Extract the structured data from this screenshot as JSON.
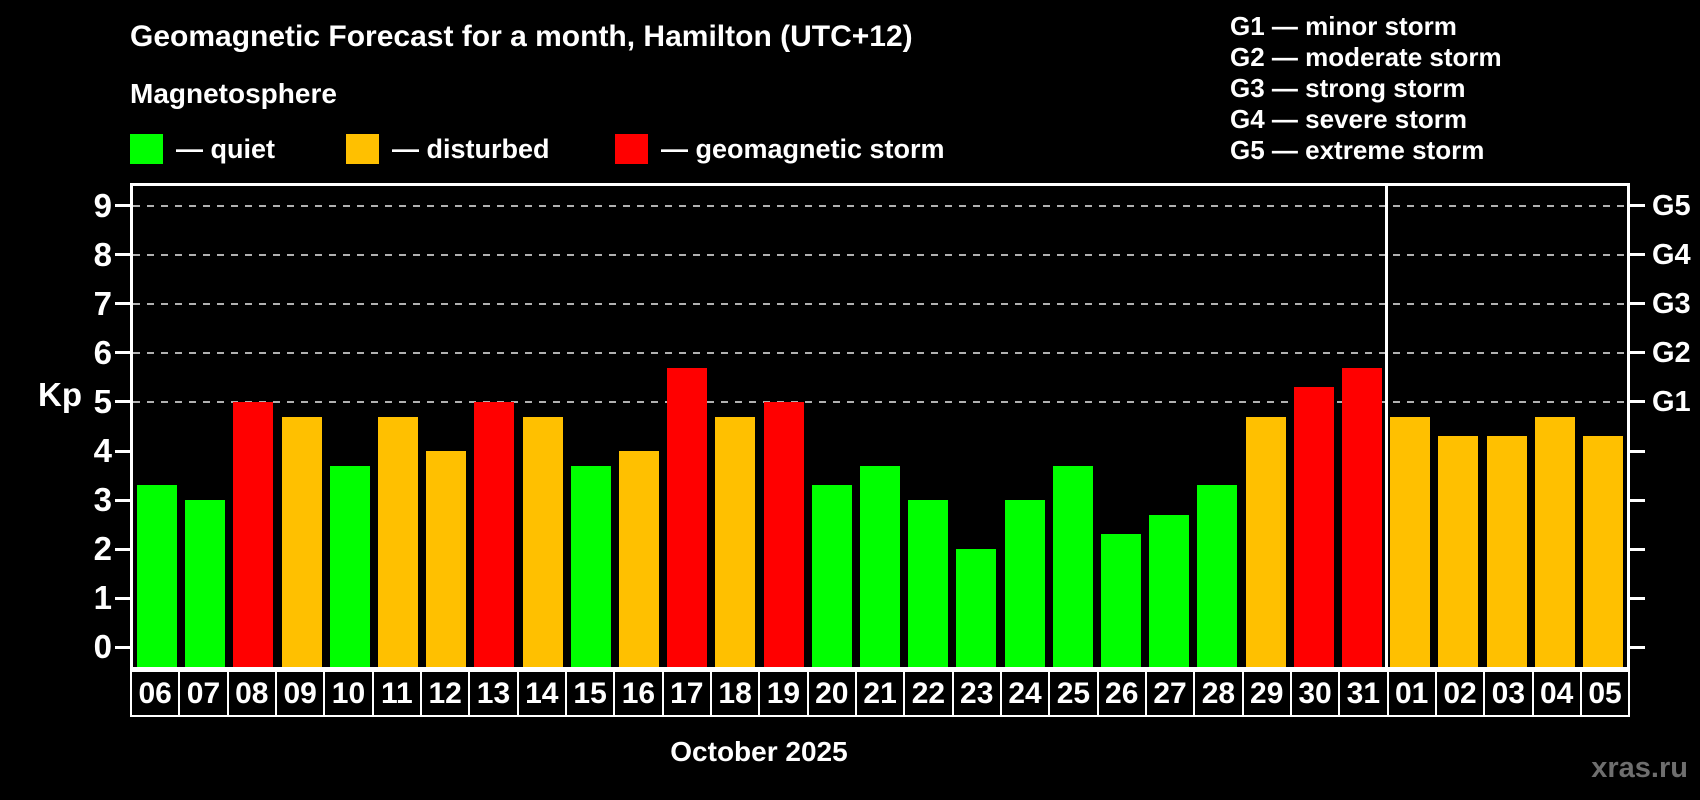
{
  "header": {
    "title": "Geomagnetic Forecast for a month, Hamilton (UTC+12)",
    "subtitle": "Magnetosphere"
  },
  "status_legend": {
    "quiet": {
      "label": "— quiet",
      "color": "#00ff00"
    },
    "disturbed": {
      "label": "— disturbed",
      "color": "#ffc000"
    },
    "storm": {
      "label": "— geomagnetic storm",
      "color": "#ff0000"
    }
  },
  "g_scale_legend": [
    "G1 — minor storm",
    "G2 — moderate storm",
    "G3 — strong storm",
    "G4 — severe storm",
    "G5 — extreme storm"
  ],
  "chart_data": {
    "type": "bar",
    "title": "Geomagnetic Forecast for a month, Hamilton (UTC+12)",
    "xlabel": "October 2025",
    "ylabel": "Kp",
    "ylim": [
      -0.4,
      9.4
    ],
    "y_ticks": [
      0,
      1,
      2,
      3,
      4,
      5,
      6,
      7,
      8,
      9
    ],
    "gridlines_at": [
      5,
      6,
      7,
      8,
      9
    ],
    "grid_style": "dashed horizontal lines at storm levels G1–G5",
    "legend_position": "top-left",
    "categories": [
      "06",
      "07",
      "08",
      "09",
      "10",
      "11",
      "12",
      "13",
      "14",
      "15",
      "16",
      "17",
      "18",
      "19",
      "20",
      "21",
      "22",
      "23",
      "24",
      "25",
      "26",
      "27",
      "28",
      "29",
      "30",
      "31",
      "01",
      "02",
      "03",
      "04",
      "05"
    ],
    "values": [
      3.3,
      3.0,
      5.0,
      4.7,
      3.7,
      4.7,
      4.0,
      5.0,
      4.7,
      3.7,
      4.0,
      5.7,
      4.7,
      5.0,
      3.3,
      3.7,
      3.0,
      2.0,
      3.0,
      3.7,
      2.3,
      2.7,
      3.3,
      4.7,
      5.3,
      5.7,
      4.7,
      4.3,
      4.3,
      4.7,
      4.3
    ],
    "statuses": [
      "quiet",
      "quiet",
      "storm",
      "disturbed",
      "quiet",
      "disturbed",
      "disturbed",
      "storm",
      "disturbed",
      "quiet",
      "disturbed",
      "storm",
      "disturbed",
      "storm",
      "quiet",
      "quiet",
      "quiet",
      "quiet",
      "quiet",
      "quiet",
      "quiet",
      "quiet",
      "quiet",
      "disturbed",
      "storm",
      "storm",
      "disturbed",
      "disturbed",
      "disturbed",
      "disturbed",
      "disturbed"
    ],
    "right_axis": [
      {
        "kp": 5,
        "label": "G1"
      },
      {
        "kp": 6,
        "label": "G2"
      },
      {
        "kp": 7,
        "label": "G3"
      },
      {
        "kp": 8,
        "label": "G4"
      },
      {
        "kp": 9,
        "label": "G5"
      }
    ],
    "month_separator_after": "31"
  },
  "footer": {
    "xlabel": "October 2025",
    "watermark": "xras.ru"
  }
}
